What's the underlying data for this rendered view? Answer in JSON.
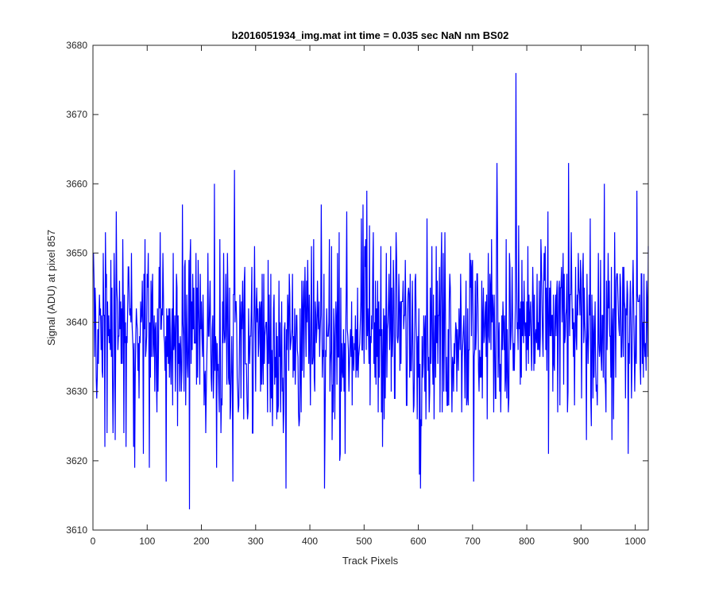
{
  "chart_data": {
    "type": "line",
    "title": "b2016051934_img.mat int time = 0.035 sec  NaN nm BS02",
    "xlabel": "Track Pixels",
    "ylabel": "Signal (ADU) at pixel 857",
    "xlim": [
      0,
      1024
    ],
    "ylim": [
      3610,
      3680
    ],
    "xticks": [
      0,
      100,
      200,
      300,
      400,
      500,
      600,
      700,
      800,
      900,
      1000
    ],
    "yticks": [
      3610,
      3620,
      3630,
      3640,
      3650,
      3660,
      3670,
      3680
    ],
    "grid": false,
    "box": true,
    "series": [
      {
        "color": "#0000ff",
        "x_start": 1,
        "x_step": 1,
        "count": 1024,
        "envelope_mean": 3638,
        "envelope_spread": 7,
        "key_points": [
          {
            "x": 1,
            "y": 3650
          },
          {
            "x": 22,
            "y": 3622
          },
          {
            "x": 55,
            "y": 3652
          },
          {
            "x": 135,
            "y": 3617
          },
          {
            "x": 165,
            "y": 3657
          },
          {
            "x": 178,
            "y": 3613
          },
          {
            "x": 224,
            "y": 3660
          },
          {
            "x": 258,
            "y": 3617
          },
          {
            "x": 261,
            "y": 3662
          },
          {
            "x": 356,
            "y": 3616
          },
          {
            "x": 427,
            "y": 3616
          },
          {
            "x": 505,
            "y": 3659
          },
          {
            "x": 604,
            "y": 3616
          },
          {
            "x": 702,
            "y": 3617
          },
          {
            "x": 745,
            "y": 3663
          },
          {
            "x": 780,
            "y": 3676
          },
          {
            "x": 877,
            "y": 3663
          },
          {
            "x": 987,
            "y": 3621
          },
          {
            "x": 1003,
            "y": 3659
          },
          {
            "x": 1024,
            "y": 3651
          }
        ]
      }
    ]
  }
}
